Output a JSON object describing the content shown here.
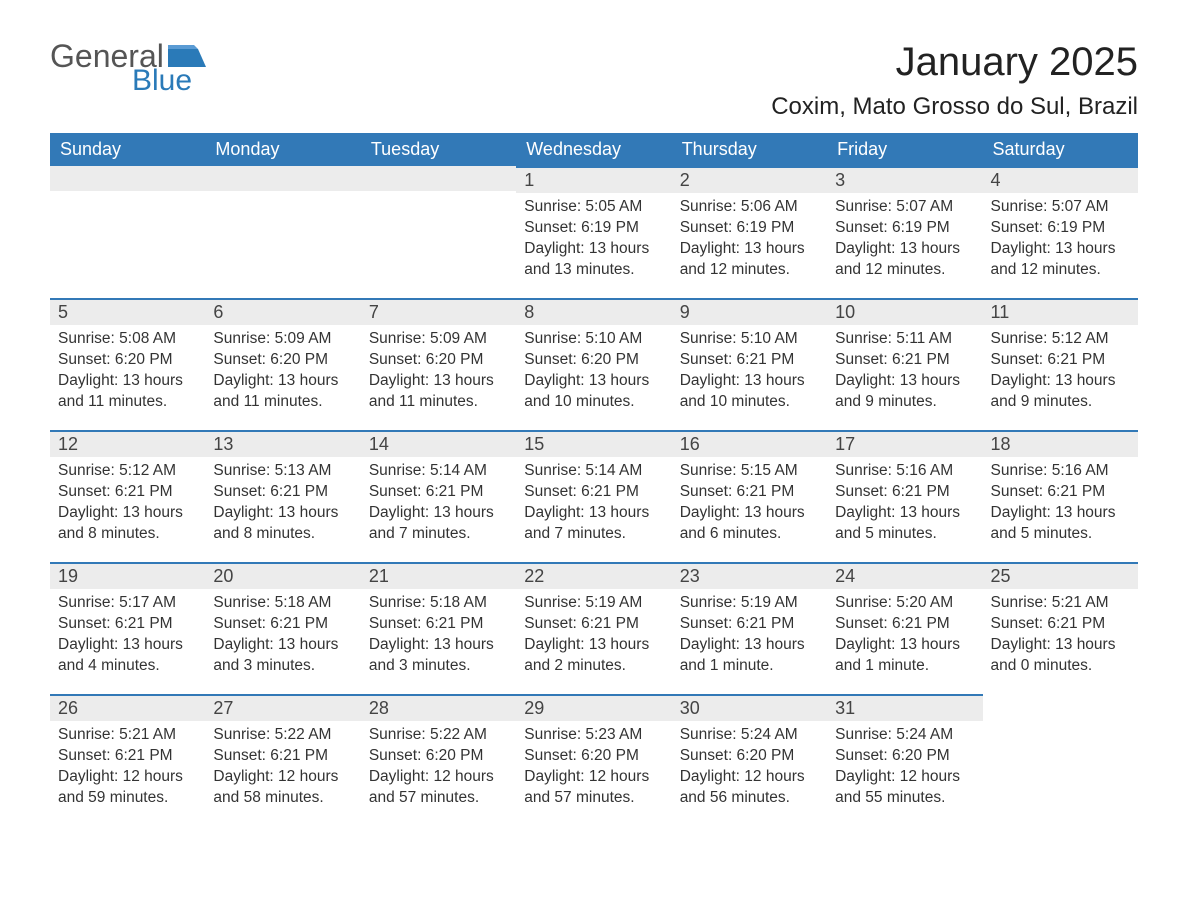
{
  "logo": {
    "text_gray": "General",
    "text_blue": "Blue"
  },
  "title": "January 2025",
  "location": "Coxim, Mato Grosso do Sul, Brazil",
  "colors": {
    "header_bg": "#3279b7",
    "header_text": "#ffffff",
    "daynum_bg": "#ececec",
    "daynum_border": "#3279b7",
    "body_text": "#333333",
    "logo_gray": "#555555",
    "logo_blue": "#2a7ab8",
    "page_bg": "#ffffff"
  },
  "typography": {
    "title_fontsize": 40,
    "location_fontsize": 24,
    "header_fontsize": 18,
    "daynum_fontsize": 18,
    "body_fontsize": 15.5
  },
  "weekdays": [
    "Sunday",
    "Monday",
    "Tuesday",
    "Wednesday",
    "Thursday",
    "Friday",
    "Saturday"
  ],
  "weeks": [
    [
      null,
      null,
      null,
      {
        "n": "1",
        "sr": "Sunrise: 5:05 AM",
        "ss": "Sunset: 6:19 PM",
        "d1": "Daylight: 13 hours",
        "d2": "and 13 minutes."
      },
      {
        "n": "2",
        "sr": "Sunrise: 5:06 AM",
        "ss": "Sunset: 6:19 PM",
        "d1": "Daylight: 13 hours",
        "d2": "and 12 minutes."
      },
      {
        "n": "3",
        "sr": "Sunrise: 5:07 AM",
        "ss": "Sunset: 6:19 PM",
        "d1": "Daylight: 13 hours",
        "d2": "and 12 minutes."
      },
      {
        "n": "4",
        "sr": "Sunrise: 5:07 AM",
        "ss": "Sunset: 6:19 PM",
        "d1": "Daylight: 13 hours",
        "d2": "and 12 minutes."
      }
    ],
    [
      {
        "n": "5",
        "sr": "Sunrise: 5:08 AM",
        "ss": "Sunset: 6:20 PM",
        "d1": "Daylight: 13 hours",
        "d2": "and 11 minutes."
      },
      {
        "n": "6",
        "sr": "Sunrise: 5:09 AM",
        "ss": "Sunset: 6:20 PM",
        "d1": "Daylight: 13 hours",
        "d2": "and 11 minutes."
      },
      {
        "n": "7",
        "sr": "Sunrise: 5:09 AM",
        "ss": "Sunset: 6:20 PM",
        "d1": "Daylight: 13 hours",
        "d2": "and 11 minutes."
      },
      {
        "n": "8",
        "sr": "Sunrise: 5:10 AM",
        "ss": "Sunset: 6:20 PM",
        "d1": "Daylight: 13 hours",
        "d2": "and 10 minutes."
      },
      {
        "n": "9",
        "sr": "Sunrise: 5:10 AM",
        "ss": "Sunset: 6:21 PM",
        "d1": "Daylight: 13 hours",
        "d2": "and 10 minutes."
      },
      {
        "n": "10",
        "sr": "Sunrise: 5:11 AM",
        "ss": "Sunset: 6:21 PM",
        "d1": "Daylight: 13 hours",
        "d2": "and 9 minutes."
      },
      {
        "n": "11",
        "sr": "Sunrise: 5:12 AM",
        "ss": "Sunset: 6:21 PM",
        "d1": "Daylight: 13 hours",
        "d2": "and 9 minutes."
      }
    ],
    [
      {
        "n": "12",
        "sr": "Sunrise: 5:12 AM",
        "ss": "Sunset: 6:21 PM",
        "d1": "Daylight: 13 hours",
        "d2": "and 8 minutes."
      },
      {
        "n": "13",
        "sr": "Sunrise: 5:13 AM",
        "ss": "Sunset: 6:21 PM",
        "d1": "Daylight: 13 hours",
        "d2": "and 8 minutes."
      },
      {
        "n": "14",
        "sr": "Sunrise: 5:14 AM",
        "ss": "Sunset: 6:21 PM",
        "d1": "Daylight: 13 hours",
        "d2": "and 7 minutes."
      },
      {
        "n": "15",
        "sr": "Sunrise: 5:14 AM",
        "ss": "Sunset: 6:21 PM",
        "d1": "Daylight: 13 hours",
        "d2": "and 7 minutes."
      },
      {
        "n": "16",
        "sr": "Sunrise: 5:15 AM",
        "ss": "Sunset: 6:21 PM",
        "d1": "Daylight: 13 hours",
        "d2": "and 6 minutes."
      },
      {
        "n": "17",
        "sr": "Sunrise: 5:16 AM",
        "ss": "Sunset: 6:21 PM",
        "d1": "Daylight: 13 hours",
        "d2": "and 5 minutes."
      },
      {
        "n": "18",
        "sr": "Sunrise: 5:16 AM",
        "ss": "Sunset: 6:21 PM",
        "d1": "Daylight: 13 hours",
        "d2": "and 5 minutes."
      }
    ],
    [
      {
        "n": "19",
        "sr": "Sunrise: 5:17 AM",
        "ss": "Sunset: 6:21 PM",
        "d1": "Daylight: 13 hours",
        "d2": "and 4 minutes."
      },
      {
        "n": "20",
        "sr": "Sunrise: 5:18 AM",
        "ss": "Sunset: 6:21 PM",
        "d1": "Daylight: 13 hours",
        "d2": "and 3 minutes."
      },
      {
        "n": "21",
        "sr": "Sunrise: 5:18 AM",
        "ss": "Sunset: 6:21 PM",
        "d1": "Daylight: 13 hours",
        "d2": "and 3 minutes."
      },
      {
        "n": "22",
        "sr": "Sunrise: 5:19 AM",
        "ss": "Sunset: 6:21 PM",
        "d1": "Daylight: 13 hours",
        "d2": "and 2 minutes."
      },
      {
        "n": "23",
        "sr": "Sunrise: 5:19 AM",
        "ss": "Sunset: 6:21 PM",
        "d1": "Daylight: 13 hours",
        "d2": "and 1 minute."
      },
      {
        "n": "24",
        "sr": "Sunrise: 5:20 AM",
        "ss": "Sunset: 6:21 PM",
        "d1": "Daylight: 13 hours",
        "d2": "and 1 minute."
      },
      {
        "n": "25",
        "sr": "Sunrise: 5:21 AM",
        "ss": "Sunset: 6:21 PM",
        "d1": "Daylight: 13 hours",
        "d2": "and 0 minutes."
      }
    ],
    [
      {
        "n": "26",
        "sr": "Sunrise: 5:21 AM",
        "ss": "Sunset: 6:21 PM",
        "d1": "Daylight: 12 hours",
        "d2": "and 59 minutes."
      },
      {
        "n": "27",
        "sr": "Sunrise: 5:22 AM",
        "ss": "Sunset: 6:21 PM",
        "d1": "Daylight: 12 hours",
        "d2": "and 58 minutes."
      },
      {
        "n": "28",
        "sr": "Sunrise: 5:22 AM",
        "ss": "Sunset: 6:20 PM",
        "d1": "Daylight: 12 hours",
        "d2": "and 57 minutes."
      },
      {
        "n": "29",
        "sr": "Sunrise: 5:23 AM",
        "ss": "Sunset: 6:20 PM",
        "d1": "Daylight: 12 hours",
        "d2": "and 57 minutes."
      },
      {
        "n": "30",
        "sr": "Sunrise: 5:24 AM",
        "ss": "Sunset: 6:20 PM",
        "d1": "Daylight: 12 hours",
        "d2": "and 56 minutes."
      },
      {
        "n": "31",
        "sr": "Sunrise: 5:24 AM",
        "ss": "Sunset: 6:20 PM",
        "d1": "Daylight: 12 hours",
        "d2": "and 55 minutes."
      },
      null
    ]
  ]
}
